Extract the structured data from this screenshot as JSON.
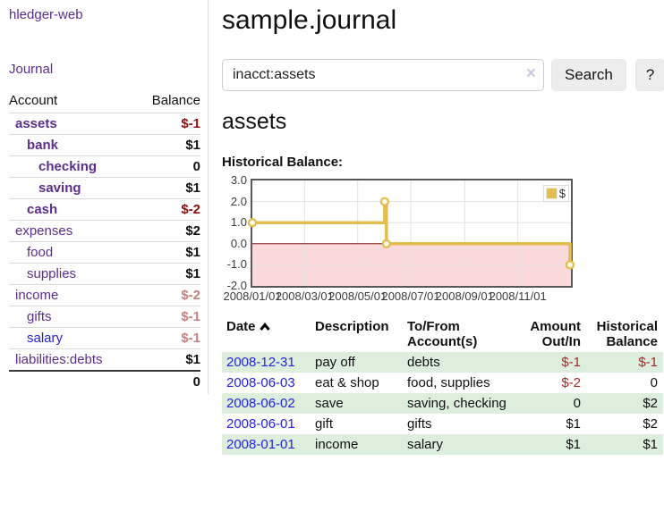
{
  "app": {
    "brand": "hledger-web",
    "nav_journal": "Journal"
  },
  "sidebar": {
    "header": {
      "account": "Account",
      "balance": "Balance"
    },
    "rows": [
      {
        "name": "assets",
        "balance": "$-1"
      },
      {
        "name": "bank",
        "balance": "$1"
      },
      {
        "name": "checking",
        "balance": "0"
      },
      {
        "name": "saving",
        "balance": "$1"
      },
      {
        "name": "cash",
        "balance": "$-2"
      },
      {
        "name": "expenses",
        "balance": "$2"
      },
      {
        "name": "food",
        "balance": "$1"
      },
      {
        "name": "supplies",
        "balance": "$1"
      },
      {
        "name": "income",
        "balance": "$-2"
      },
      {
        "name": "gifts",
        "balance": "$-1"
      },
      {
        "name": "salary",
        "balance": "$-1"
      },
      {
        "name": "liabilities:debts",
        "balance": "$1"
      }
    ],
    "total": "0"
  },
  "main": {
    "title": "sample.journal",
    "search": {
      "value": "inacct:assets",
      "clear_icon": "×",
      "button_label": "Search",
      "help_label": "?"
    },
    "heading": "assets"
  },
  "chart_data": {
    "type": "line",
    "title": "Historical Balance:",
    "step": true,
    "x_range": [
      "2008-01-01",
      "2009-01-01"
    ],
    "ylim": [
      -2,
      3
    ],
    "y_ticks": [
      "3.0",
      "2.0",
      "1.0",
      "0.0",
      "-1.0",
      "-2.0"
    ],
    "x_ticks": [
      {
        "label": "2008/01/01",
        "date": "2008-01-01"
      },
      {
        "label": "2008/03/01",
        "date": "2008-03-01"
      },
      {
        "label": "2008/05/01",
        "date": "2008-05-01"
      },
      {
        "label": "2008/07/01",
        "date": "2008-07-01"
      },
      {
        "label": "2008/09/01",
        "date": "2008-09-01"
      },
      {
        "label": "2008/11/01",
        "date": "2008-11-01"
      }
    ],
    "series": [
      {
        "name": "$",
        "color": "#e4bd4e",
        "points": [
          {
            "date": "2008-01-01",
            "value": 1
          },
          {
            "date": "2008-06-01",
            "value": 2
          },
          {
            "date": "2008-06-03",
            "value": 0
          },
          {
            "date": "2008-12-31",
            "value": -1
          }
        ]
      }
    ],
    "legend": {
      "label": "$",
      "position": "top-right"
    },
    "grid": true,
    "zero_line_color": "#7a1212",
    "negative_region_color": "#f9d9d9"
  },
  "table": {
    "headers": {
      "date": "Date",
      "description": "Description",
      "tofrom": "To/From Account(s)",
      "amount": "Amount Out/In",
      "historical": "Historical Balance"
    },
    "rows": [
      {
        "date": "2008-12-31",
        "description": "pay off",
        "tofrom": "debts",
        "amount": "$-1",
        "historical": "$-1"
      },
      {
        "date": "2008-06-03",
        "description": "eat & shop",
        "tofrom": "food, supplies",
        "amount": "$-2",
        "historical": "0"
      },
      {
        "date": "2008-06-02",
        "description": "save",
        "tofrom": "saving, checking",
        "amount": "0",
        "historical": "$2"
      },
      {
        "date": "2008-06-01",
        "description": "gift",
        "tofrom": "gifts",
        "amount": "$1",
        "historical": "$2"
      },
      {
        "date": "2008-01-01",
        "description": "income",
        "tofrom": "salary",
        "amount": "$1",
        "historical": "$1"
      }
    ]
  }
}
